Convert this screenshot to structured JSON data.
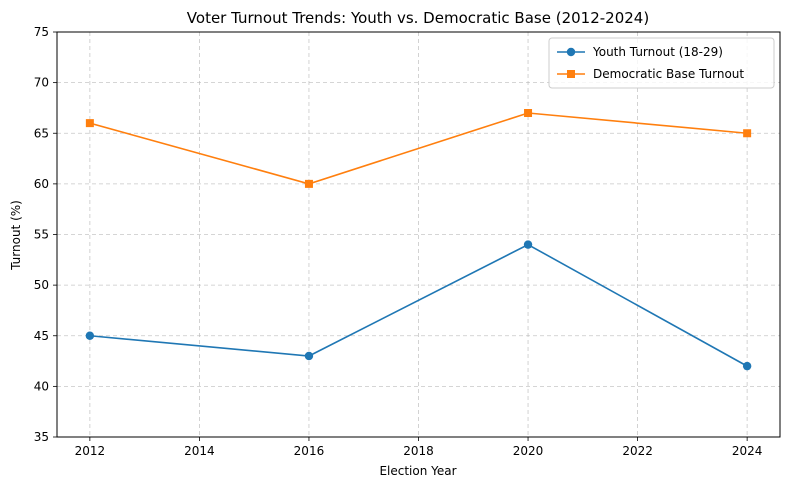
{
  "chart_data": {
    "type": "line",
    "title": "Voter Turnout Trends: Youth vs. Democratic Base (2012-2024)",
    "xlabel": "Election Year",
    "ylabel": "Turnout (%)",
    "xlim": [
      2011.4,
      2024.6
    ],
    "ylim": [
      35,
      75
    ],
    "x_ticks": [
      2012,
      2014,
      2016,
      2018,
      2020,
      2022,
      2024
    ],
    "y_ticks": [
      35,
      40,
      45,
      50,
      55,
      60,
      65,
      70,
      75
    ],
    "grid": true,
    "legend_position": "top-right",
    "x": [
      2012,
      2016,
      2020,
      2024
    ],
    "series": [
      {
        "name": "Youth Turnout (18-29)",
        "values": [
          45,
          43,
          54,
          42
        ],
        "color": "#1f77b4",
        "marker": "circle"
      },
      {
        "name": "Democratic Base Turnout",
        "values": [
          66,
          60,
          67,
          65
        ],
        "color": "#ff7f0e",
        "marker": "square"
      }
    ]
  }
}
